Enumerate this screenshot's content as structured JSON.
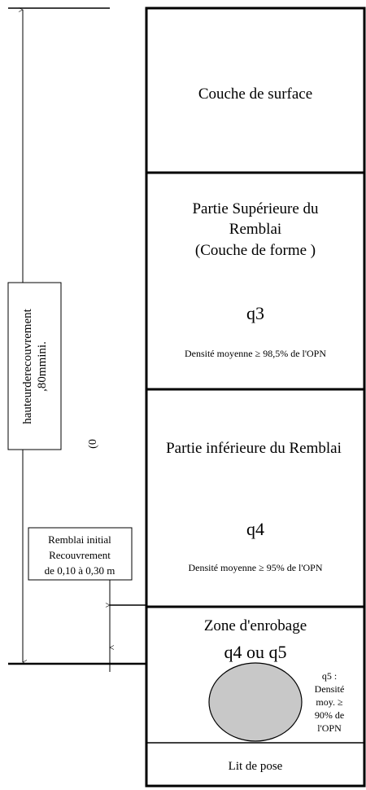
{
  "cover_height": {
    "label_line1": "hauteurderecouvrement",
    "label_line2": ",80mmini.",
    "side_note": "(0"
  },
  "initial_fill": {
    "lines": [
      "Remblai initial",
      "Recouvrement",
      "de 0,10 à 0,30 m"
    ]
  },
  "layers": [
    {
      "title": "Couche de surface"
    },
    {
      "title_lines": [
        "Partie Supérieure du",
        "Remblai",
        "(Couche de forme )"
      ],
      "class": "q3",
      "density": "Densité moyenne ≥ 98,5% de l'OPN"
    },
    {
      "title": "Partie inférieure du Remblai",
      "class": "q4",
      "density": "Densité moyenne ≥ 95% de l'OPN"
    },
    {
      "title": "Zone d'enrobage",
      "class": "q4 ou q5",
      "note_lines": [
        "q5 :",
        "Densité",
        "moy. ≥",
        "90% de",
        "l'OPN"
      ]
    },
    {
      "title": "Lit de pose"
    }
  ]
}
